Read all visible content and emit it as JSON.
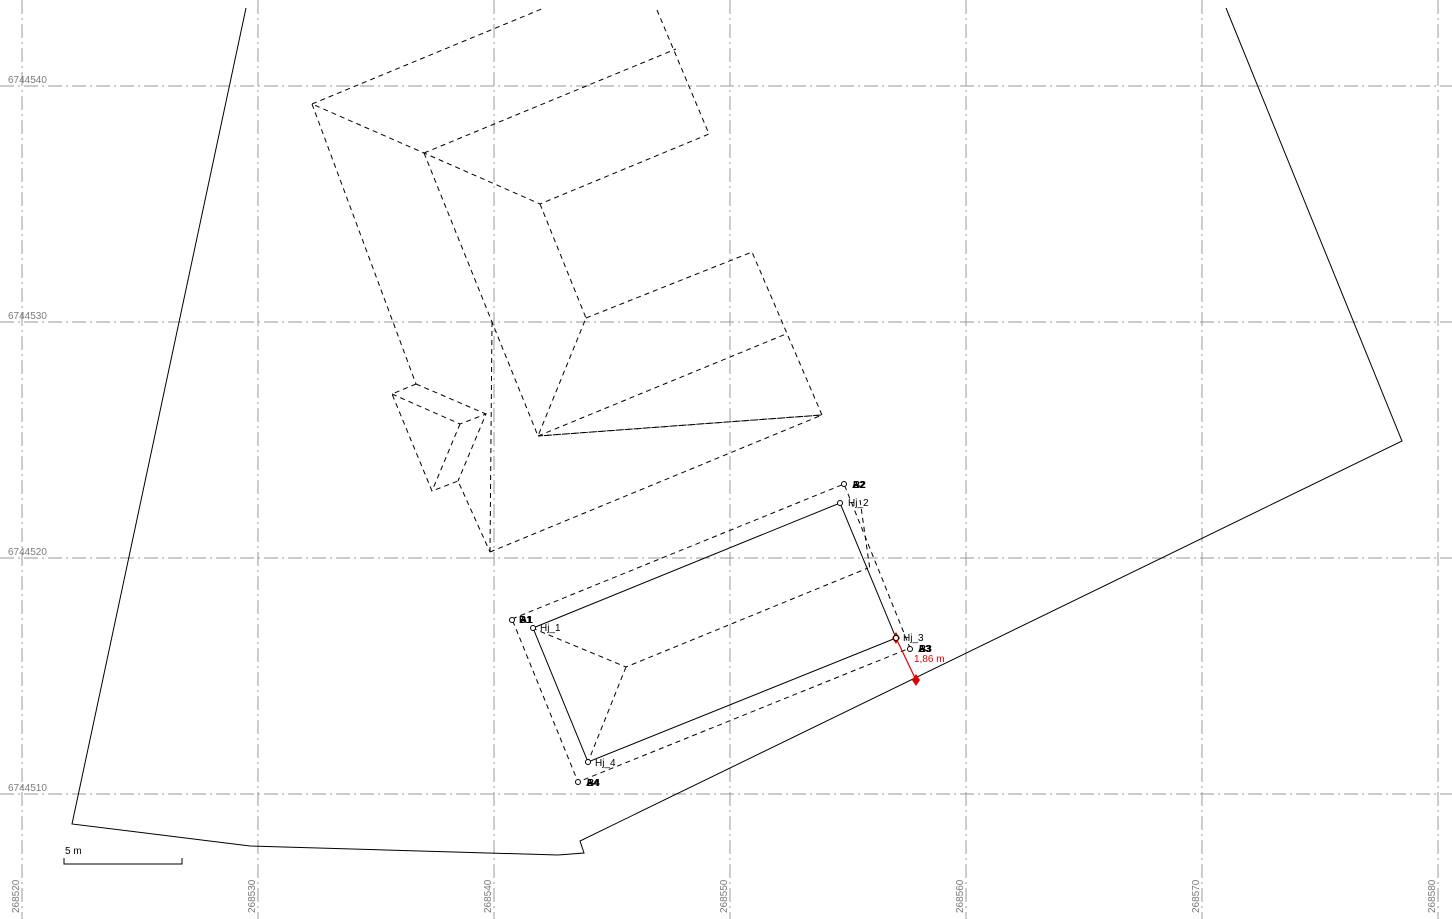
{
  "grid": {
    "y_labels": [
      "6744540",
      "6744530",
      "6744520",
      "6744510"
    ],
    "x_labels": [
      "268520",
      "268530",
      "268540",
      "268550",
      "268560",
      "268570",
      "268580"
    ]
  },
  "points": {
    "hj1": "Hj_1",
    "hj2": "Hj_2",
    "hj3": "Hj_3",
    "hj4": "Hj_4",
    "b1": "B1",
    "a1": "A1",
    "a2": "A2",
    "b2": "B2",
    "a3": "A3",
    "b3": "B3",
    "a4": "A4",
    "b4": "B4"
  },
  "measurement": {
    "label": "1,86 m",
    "color": "#e00000"
  },
  "scale_bar": {
    "label": "5 m"
  },
  "colors": {
    "grid": "#9a9a9a",
    "measurement": "#e00000",
    "lines": "#000000"
  }
}
